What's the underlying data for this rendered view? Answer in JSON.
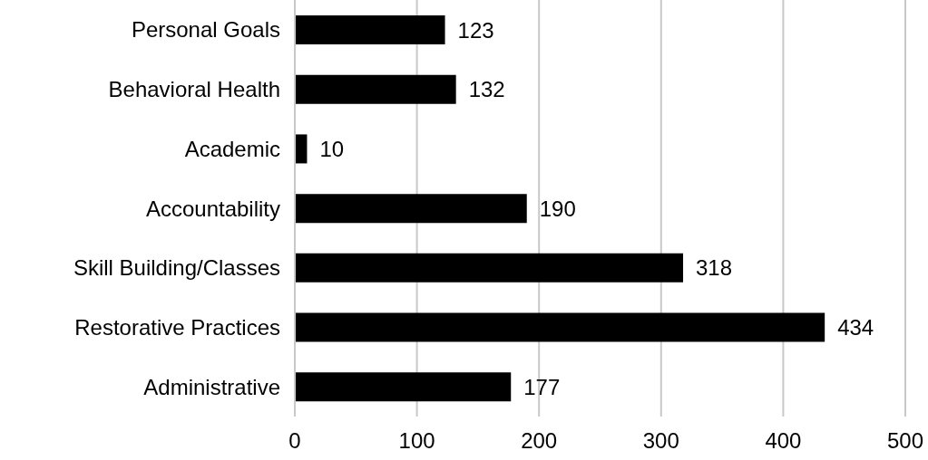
{
  "chart_data": {
    "type": "bar",
    "orientation": "horizontal",
    "categories": [
      "Personal Goals",
      "Behavioral Health",
      "Academic",
      "Accountability",
      "Skill Building/Classes",
      "Restorative Practices",
      "Administrative"
    ],
    "values": [
      123,
      132,
      10,
      190,
      318,
      434,
      177
    ],
    "color": "#000000",
    "xlim": [
      0,
      500
    ],
    "xticks": [
      0,
      100,
      200,
      300,
      400,
      500
    ],
    "grid": "x",
    "data_labels": true
  }
}
